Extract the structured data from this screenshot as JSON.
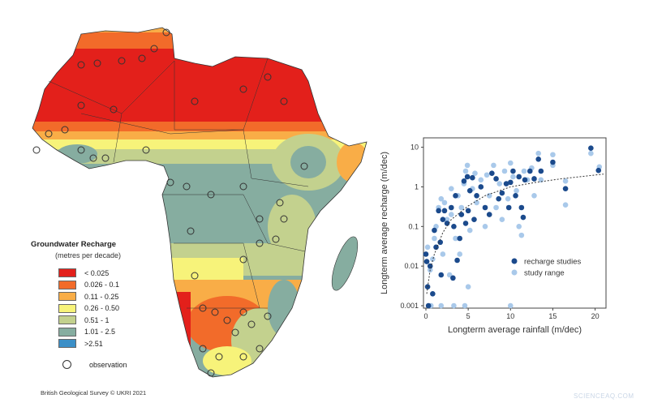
{
  "legend": {
    "title": "Groundwater Recharge",
    "subtitle": "(metres per decade)",
    "classes": [
      {
        "label": "< 0.025",
        "color": "#e3201b"
      },
      {
        "label": "0.026 - 0.1",
        "color": "#f26b2a"
      },
      {
        "label": "0.11 - 0.25",
        "color": "#f9ad47"
      },
      {
        "label": "0.26 - 0.50",
        "color": "#f7f37a"
      },
      {
        "label": "0.51 - 1",
        "color": "#c3d18e"
      },
      {
        "label": "1.01 - 2.5",
        "color": "#86ada0"
      },
      {
        "label": ">2.51",
        "color": "#3b8fc7"
      }
    ],
    "observation_label": "observation"
  },
  "credit": "British Geological Survey © UKRI 2021",
  "watermark": "SCIENCEAQ.COM",
  "chart_data": {
    "type": "scatter",
    "xlabel": "Longterm average rainfall (m/dec)",
    "ylabel": "Longterm average recharge (m/dec)",
    "xlim": [
      0,
      21
    ],
    "ylim": [
      0.001,
      15
    ],
    "yscale": "log",
    "xticks": [
      "0",
      "5",
      "10",
      "15",
      "20"
    ],
    "yticks": [
      "0.001",
      "0.01",
      "0.1",
      "1",
      "10"
    ],
    "grid": false,
    "legend_position": "bottom-right",
    "series": [
      {
        "name": "study range",
        "color": "#a9c9ea",
        "points": [
          [
            0.2,
            0.03
          ],
          [
            0.5,
            0.008
          ],
          [
            0.8,
            0.015
          ],
          [
            1,
            0.05
          ],
          [
            1.2,
            0.1
          ],
          [
            1.5,
            0.3
          ],
          [
            1.8,
            0.5
          ],
          [
            2,
            0.02
          ],
          [
            2.2,
            0.4
          ],
          [
            2.5,
            0.15
          ],
          [
            2.8,
            0.006
          ],
          [
            3,
            0.2
          ],
          [
            3,
            0.9
          ],
          [
            3.3,
            0.001
          ],
          [
            3.5,
            0.05
          ],
          [
            3.8,
            0.6
          ],
          [
            4,
            0.02
          ],
          [
            4.2,
            0.3
          ],
          [
            4.5,
            1.2
          ],
          [
            4.7,
            2.5
          ],
          [
            4.9,
            3.5
          ],
          [
            5,
            0.003
          ],
          [
            5.2,
            0.08
          ],
          [
            5.5,
            0.9
          ],
          [
            5.8,
            2.2
          ],
          [
            6,
            0.4
          ],
          [
            6.5,
            1.5
          ],
          [
            7,
            0.1
          ],
          [
            7.2,
            2
          ],
          [
            7.5,
            0.6
          ],
          [
            8,
            3.5
          ],
          [
            8.3,
            0.3
          ],
          [
            8.7,
            1.2
          ],
          [
            9,
            0.15
          ],
          [
            9.3,
            2.5
          ],
          [
            9.7,
            0.5
          ],
          [
            10,
            4
          ],
          [
            10,
            0.001
          ],
          [
            10.3,
            1.8
          ],
          [
            10.7,
            0.8
          ],
          [
            11,
            0.1
          ],
          [
            11.3,
            0.06
          ],
          [
            11.6,
            2.5
          ],
          [
            12,
            1.5
          ],
          [
            12.5,
            3
          ],
          [
            12.8,
            0.6
          ],
          [
            13.3,
            7
          ],
          [
            13.6,
            1.5
          ],
          [
            15,
            6.5
          ],
          [
            15,
            3.5
          ],
          [
            16.5,
            0.35
          ],
          [
            16.5,
            1.4
          ],
          [
            19.5,
            7
          ],
          [
            20.5,
            3.2
          ],
          [
            0.6,
            0.001
          ],
          [
            1.8,
            0.001
          ],
          [
            4.6,
            0.001
          ]
        ]
      },
      {
        "name": "recharge studies",
        "color": "#1b4a8c",
        "points": [
          [
            0,
            0.02
          ],
          [
            0.1,
            0.013
          ],
          [
            0.2,
            0.003
          ],
          [
            0.3,
            0.001
          ],
          [
            0.5,
            0.01
          ],
          [
            0.8,
            0.002
          ],
          [
            1,
            0.08
          ],
          [
            1.2,
            0.03
          ],
          [
            1.5,
            0.25
          ],
          [
            1.7,
            0.04
          ],
          [
            1.8,
            0.006
          ],
          [
            2,
            0.15
          ],
          [
            2.2,
            0.25
          ],
          [
            2.5,
            0.12
          ],
          [
            3,
            0.3
          ],
          [
            3.2,
            0.005
          ],
          [
            3.3,
            0.1
          ],
          [
            3.5,
            0.6
          ],
          [
            3.7,
            0.014
          ],
          [
            4,
            0.05
          ],
          [
            4.2,
            0.2
          ],
          [
            4.5,
            1.4
          ],
          [
            4.7,
            0.12
          ],
          [
            4.9,
            1.8
          ],
          [
            5,
            0.25
          ],
          [
            5.2,
            0.8
          ],
          [
            5.5,
            1.7
          ],
          [
            5.7,
            0.15
          ],
          [
            6,
            0.6
          ],
          [
            6.5,
            1
          ],
          [
            7,
            0.3
          ],
          [
            7.5,
            0.2
          ],
          [
            7.8,
            2.2
          ],
          [
            8.3,
            1.6
          ],
          [
            8.6,
            0.5
          ],
          [
            9,
            0.7
          ],
          [
            9.5,
            1.2
          ],
          [
            9.8,
            0.3
          ],
          [
            10,
            1.3
          ],
          [
            10.3,
            2.5
          ],
          [
            10.6,
            0.6
          ],
          [
            11,
            1.8
          ],
          [
            11.3,
            0.3
          ],
          [
            11.5,
            0.17
          ],
          [
            11.7,
            1.5
          ],
          [
            12.3,
            2.5
          ],
          [
            12.8,
            1.6
          ],
          [
            13.3,
            5
          ],
          [
            13.6,
            2.5
          ],
          [
            15,
            4.2
          ],
          [
            16.5,
            0.9
          ],
          [
            19.5,
            9.5
          ],
          [
            20.4,
            2.6
          ]
        ]
      }
    ],
    "trend_line": [
      [
        0.1,
        0.002
      ],
      [
        0.5,
        0.008
      ],
      [
        1,
        0.02
      ],
      [
        2,
        0.07
      ],
      [
        3,
        0.15
      ],
      [
        5,
        0.33
      ],
      [
        7,
        0.6
      ],
      [
        10,
        1.0
      ],
      [
        13,
        1.3
      ],
      [
        16,
        1.6
      ],
      [
        21,
        2.1
      ]
    ]
  }
}
